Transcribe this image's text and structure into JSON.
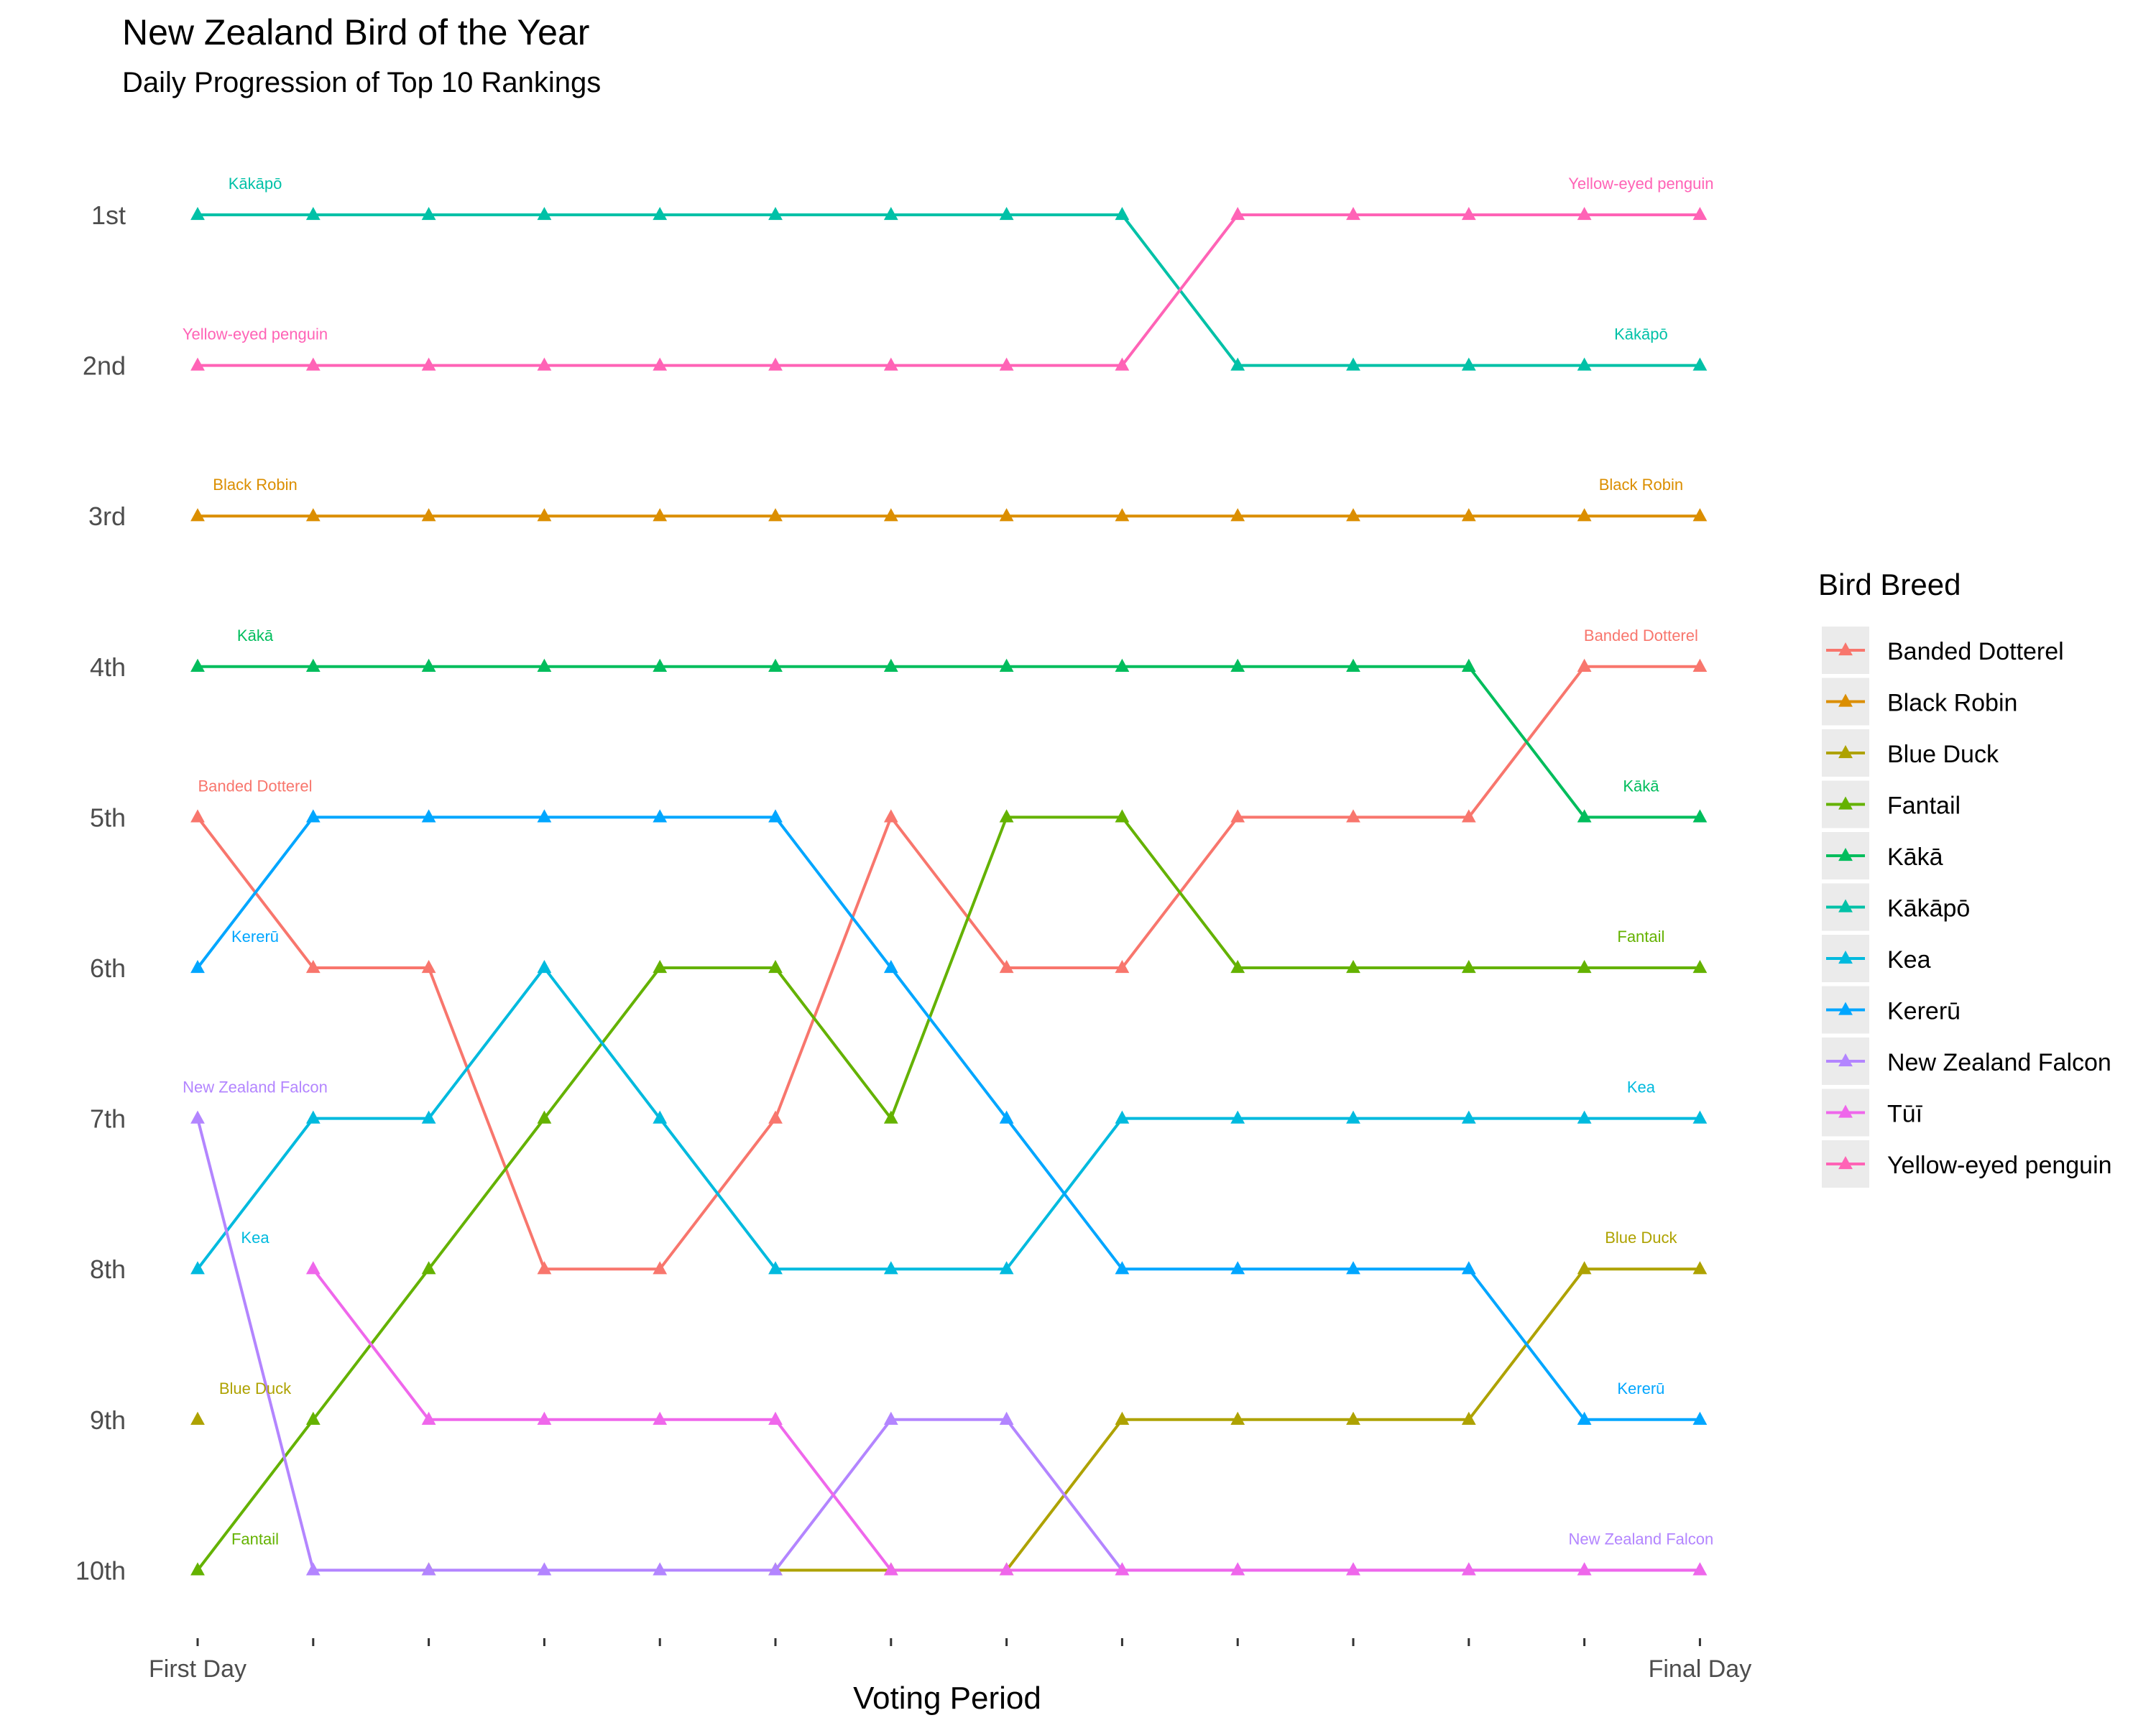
{
  "chart_data": {
    "type": "line",
    "title": "New Zealand Bird of the Year",
    "subtitle": "Daily Progression of Top 10 Rankings",
    "xlabel": "Voting Period",
    "ylabel": "",
    "x_tick_labels": [
      "First Day",
      "",
      "",
      "",
      "",
      "",
      "",
      "",
      "",
      "",
      "",
      "",
      "",
      "Final Day"
    ],
    "y_tick_labels": [
      "1st",
      "2nd",
      "3rd",
      "4th",
      "5th",
      "6th",
      "7th",
      "8th",
      "9th",
      "10th"
    ],
    "y_reversed": true,
    "ylim": [
      1,
      10
    ],
    "legend_title": "Bird Breed",
    "legend_position": "right",
    "grid": false,
    "marker": "triangle",
    "series": [
      {
        "name": "Banded Dotterel",
        "color": "#F8766D",
        "values": [
          5,
          6,
          6,
          8,
          8,
          7,
          5,
          6,
          6,
          5,
          5,
          5,
          4,
          4
        ]
      },
      {
        "name": "Black Robin",
        "color": "#DB8E00",
        "values": [
          3,
          3,
          3,
          3,
          3,
          3,
          3,
          3,
          3,
          3,
          3,
          3,
          3,
          3
        ]
      },
      {
        "name": "Blue Duck",
        "color": "#AEA200",
        "values": [
          9,
          null,
          10,
          null,
          null,
          10,
          10,
          10,
          9,
          9,
          9,
          9,
          8,
          8
        ]
      },
      {
        "name": "Fantail",
        "color": "#64B200",
        "values": [
          10,
          9,
          8,
          7,
          6,
          6,
          7,
          5,
          5,
          6,
          6,
          6,
          6,
          6
        ]
      },
      {
        "name": "Kākā",
        "color": "#00BD5C",
        "values": [
          4,
          4,
          4,
          4,
          4,
          4,
          4,
          4,
          4,
          4,
          4,
          4,
          5,
          5
        ]
      },
      {
        "name": "Kākāpō",
        "color": "#00C1A7",
        "values": [
          1,
          1,
          1,
          1,
          1,
          1,
          1,
          1,
          1,
          2,
          2,
          2,
          2,
          2
        ]
      },
      {
        "name": "Kea",
        "color": "#00BADE",
        "values": [
          8,
          7,
          7,
          6,
          7,
          8,
          8,
          8,
          7,
          7,
          7,
          7,
          7,
          7
        ]
      },
      {
        "name": "Kererū",
        "color": "#00A6FF",
        "values": [
          6,
          5,
          5,
          5,
          5,
          5,
          6,
          7,
          8,
          8,
          8,
          8,
          9,
          9
        ]
      },
      {
        "name": "New Zealand Falcon",
        "color": "#B385FF",
        "values": [
          7,
          10,
          10,
          10,
          10,
          10,
          9,
          9,
          10,
          10,
          10,
          10,
          10,
          10
        ]
      },
      {
        "name": "Tūī",
        "color": "#EF67EB",
        "values": [
          null,
          8,
          9,
          9,
          9,
          9,
          10,
          10,
          10,
          10,
          10,
          10,
          10,
          10
        ]
      },
      {
        "name": "Yellow-eyed penguin",
        "color": "#FF63B6",
        "values": [
          2,
          2,
          2,
          2,
          2,
          2,
          2,
          2,
          2,
          1,
          1,
          1,
          1,
          1
        ]
      }
    ],
    "start_labels": [
      {
        "series": "Kākāpō",
        "rank": 1
      },
      {
        "series": "Yellow-eyed penguin",
        "rank": 2
      },
      {
        "series": "Black Robin",
        "rank": 3
      },
      {
        "series": "Kākā",
        "rank": 4
      },
      {
        "series": "Banded Dotterel",
        "rank": 5
      },
      {
        "series": "Kererū",
        "rank": 6
      },
      {
        "series": "New Zealand Falcon",
        "rank": 7
      },
      {
        "series": "Kea",
        "rank": 8
      },
      {
        "series": "Blue Duck",
        "rank": 9
      },
      {
        "series": "Fantail",
        "rank": 10
      }
    ],
    "end_labels": [
      {
        "series": "Yellow-eyed penguin",
        "rank": 1
      },
      {
        "series": "Kākāpō",
        "rank": 2
      },
      {
        "series": "Black Robin",
        "rank": 3
      },
      {
        "series": "Banded Dotterel",
        "rank": 4
      },
      {
        "series": "Kākā",
        "rank": 5
      },
      {
        "series": "Fantail",
        "rank": 6
      },
      {
        "series": "Kea",
        "rank": 7
      },
      {
        "series": "Blue Duck",
        "rank": 8
      },
      {
        "series": "Kererū",
        "rank": 9
      },
      {
        "series": "New Zealand Falcon",
        "rank": 10
      }
    ]
  }
}
